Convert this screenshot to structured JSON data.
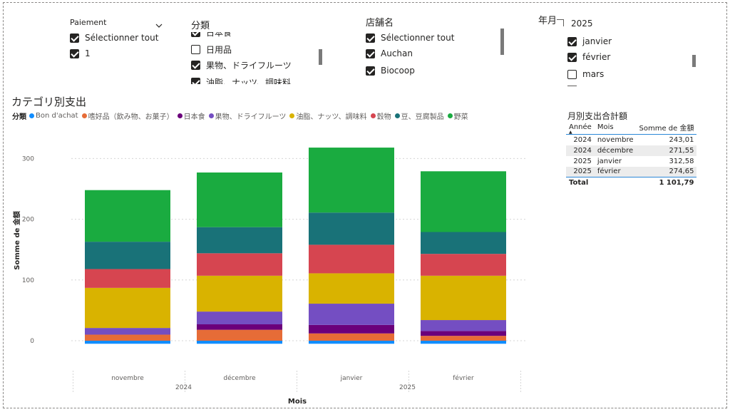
{
  "slicers": {
    "payment": {
      "title": "Paiement",
      "options": [
        {
          "label": "Sélectionner tout",
          "checked": true
        },
        {
          "label": "1",
          "checked": true
        }
      ]
    },
    "category": {
      "title": "分類",
      "options": [
        {
          "label": "日本食",
          "checked": true
        },
        {
          "label": "日用品",
          "checked": false
        },
        {
          "label": "果物、ドライフルーツ",
          "checked": true
        },
        {
          "label": "油脂、ナッツ、調味料",
          "checked": true
        }
      ]
    },
    "store": {
      "title": "店舗名",
      "options": [
        {
          "label": "Sélectionner tout",
          "checked": true
        },
        {
          "label": "Auchan",
          "checked": true
        },
        {
          "label": "Biocoop",
          "checked": true
        }
      ]
    },
    "yearmonth": {
      "title": "年月",
      "year_label": "2025",
      "options": [
        {
          "label": "janvier",
          "checked": true
        },
        {
          "label": "février",
          "checked": true
        },
        {
          "label": "mars",
          "checked": false
        }
      ]
    }
  },
  "chart_title": "カテゴリ別支出",
  "legend_label": "分類",
  "chart_data": {
    "type": "bar",
    "stacked": true,
    "title": "カテゴリ別支出",
    "xlabel": "Mois",
    "ylabel": "Somme de 金額",
    "categories": [
      "novembre",
      "décembre",
      "janvier",
      "février"
    ],
    "year_groups": [
      {
        "label": "2024",
        "span": [
          0,
          1
        ]
      },
      {
        "label": "2025",
        "span": [
          2,
          3
        ]
      }
    ],
    "yticks": [
      0,
      100,
      200,
      300
    ],
    "ylim": [
      0,
      330
    ],
    "grid": true,
    "series": [
      {
        "name": "Bon d'achat",
        "color": "#118DFF",
        "values": [
          -5,
          -5,
          -5,
          -5
        ]
      },
      {
        "name": "嗜好品（飲み物、お菓子）",
        "color": "#E66C37",
        "values": [
          10,
          18,
          12,
          8
        ]
      },
      {
        "name": "日本食",
        "color": "#6B007B",
        "values": [
          0,
          9,
          14,
          8
        ]
      },
      {
        "name": "果物、ドライフルーツ",
        "color": "#744EC2",
        "values": [
          11,
          21,
          35,
          18
        ]
      },
      {
        "name": "油脂、ナッツ、調味料",
        "color": "#D9B300",
        "values": [
          66,
          59,
          50,
          73
        ]
      },
      {
        "name": "穀物",
        "color": "#D64550",
        "values": [
          31,
          37,
          47,
          36
        ]
      },
      {
        "name": "豆、豆腐製品",
        "color": "#197278",
        "values": [
          45,
          43,
          53,
          36
        ]
      },
      {
        "name": "野菜",
        "color": "#1AAB40",
        "values": [
          85,
          90,
          107,
          100
        ]
      }
    ]
  },
  "table": {
    "title": "月別支出合計額",
    "headers": [
      "Année",
      "Mois",
      "Somme de 金額"
    ],
    "rows": [
      [
        "2024",
        "novembre",
        "243,01"
      ],
      [
        "2024",
        "décembre",
        "271,55"
      ],
      [
        "2025",
        "janvier",
        "312,58"
      ],
      [
        "2025",
        "février",
        "274,65"
      ]
    ],
    "total_label": "Total",
    "total_value": "1 101,79"
  }
}
